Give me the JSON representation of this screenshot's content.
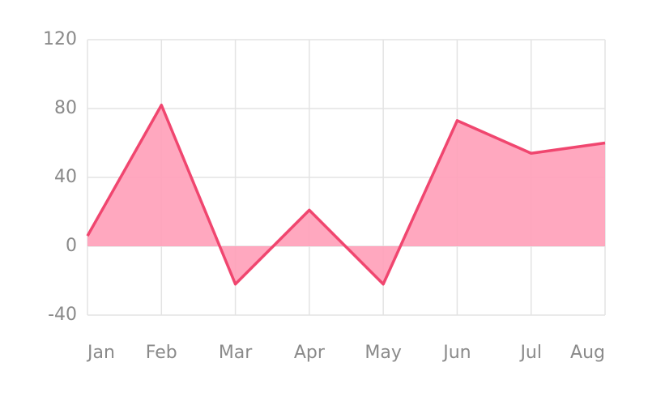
{
  "chart_data": {
    "type": "line",
    "area": true,
    "categories": [
      "Jan",
      "Feb",
      "Mar",
      "Apr",
      "May",
      "Jun",
      "Jul",
      "Aug"
    ],
    "values": [
      6,
      82,
      -22,
      21,
      -22,
      73,
      54,
      60
    ],
    "color": "#f0466f",
    "area_color": "#ff9fb8",
    "ylim": [
      -40,
      120
    ],
    "yticks": [
      -40,
      0,
      40,
      80,
      120
    ],
    "grid": true
  }
}
